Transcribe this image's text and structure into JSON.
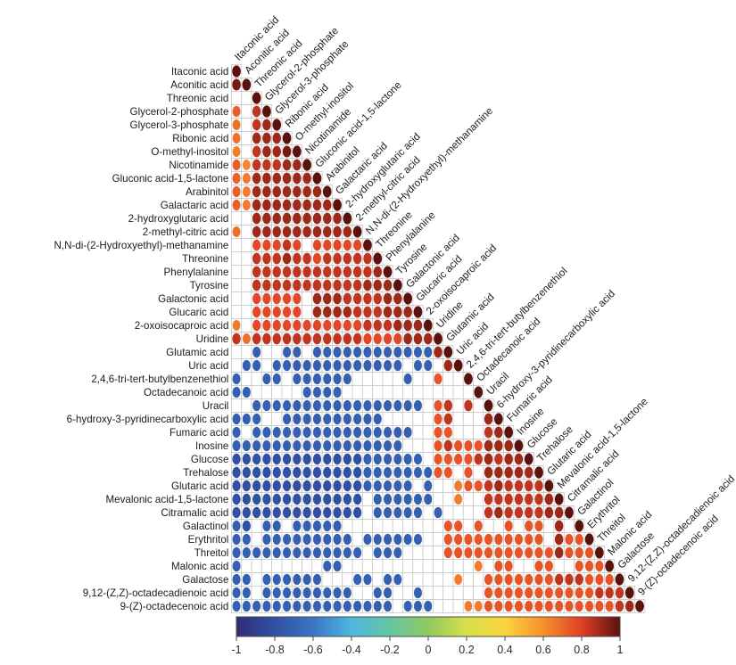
{
  "chart_data": {
    "type": "heatmap",
    "subtype": "correlation-ellipse-matrix",
    "title": "",
    "legend_position": "bottom",
    "grid": true,
    "variables": [
      "Itaconic acid",
      "Aconitic acid",
      "Threonic acid",
      "Glycerol-2-phosphate",
      "Glycerol-3-phosphate",
      "Ribonic acid",
      "O-methyl-inositol",
      "Nicotinamide",
      "Gluconic acid-1,5-lactone",
      "Arabinitol",
      "Galactaric acid",
      "2-hydroxyglutaric acid",
      "2-methyl-citric acid",
      "N,N-di-(2-Hydroxyethyl)-methanamine",
      "Threonine",
      "Phenylalanine",
      "Tyrosine",
      "Galactonic acid",
      "Glucaric acid",
      "2-oxoisocaproic acid",
      "Uridine",
      "Glutamic acid",
      "Uric acid",
      "2,4,6-tri-tert-butylbenzenethiol",
      "Octadecanoic acid",
      "Uracil",
      "6-hydroxy-3-pyridinecarboxylic acid",
      "Fumaric acid",
      "Inosine",
      "Glucose",
      "Trehalose",
      "Glutaric acid",
      "Mevalonic acid-1,5-lactone",
      "Citramalic acid",
      "Galactinol",
      "Erythritol",
      "Threitol",
      "Malonic acid",
      "Galactose",
      "9,12-(Z,Z)-octadecadienoic acid",
      "9-(Z)-octadecenoic acid"
    ],
    "value_key": {
      ".": null,
      "1": 0.62,
      "2": 0.65,
      "3": 0.68,
      "4": 0.72,
      "5": 0.75,
      "6": 0.78,
      "7": 0.85,
      "8": 0.9,
      "9": 0.96,
      "X": 1.0,
      "a": -0.55,
      "b": -0.72,
      "c": -0.8,
      "e": -0.85,
      "g": -0.95
    },
    "matrix_rows": [
      "X",
      "9X",
      "..X",
      "4.7X",
      "3.78X",
      "3.888X",
      "2.7889X",
      "4177788X",
      "42888888X",
      "428888888X",
      "4288888888X",
      "..888888888X",
      "3.8888888888X",
      "..66676.66666X",
      "..777877677777X",
      "..7777777777778X",
      "..77777777777888X",
      "..66666.888777788X",
      "..66666.8888777888X",
      "2.66666666666777888X",
      "73777777777776666888X",
      "..b..bb.bbbbbbbbbbbb8X",
      ".bb.bbbbbbbbbbbbb.bb.8X",
      "b..bb.bbbbbb.....b..5..X",
      "bb.....bbbb.............X",
      "..bbbbbbbbbbbbbbbbb.57.7.X",
      "bbb..bbbbbbbbbb.....57...8X",
      "b.bbbbbbbbbbbbbbbb..55...78X",
      "bbbbbbbbbbbbbbbbb...57555888X",
      "cccccccccccccbbbbbb.555578788X",
      "cccccccccccccbbbbbbb55.5.88888X",
      "cccccccccccccbbbbb.b..255787777X",
      "ccccccccccccc.bbbbbb..2..7777778X",
      "ccccccccccccc.bbbbb.b....78777788X",
      "bc.bb.bbbbb..........55.5..5.55.8.X",
      "bb.bbbbbbbbb.bbbbbb..5555555555.855X",
      "bbbbbbbbbbbbb.bbb....555555555558555X",
      "b........bb.............2.55..55..555X",
      "bb.bbbbbb...bb.bb.....2..5555555777555X",
      "bb.bbbbbbbbb..bb..b......55555555555777X",
      "bbbbbbbbbbbbbbbb.bbb...22555555555555578X"
    ],
    "colorbar": {
      "min": -1,
      "max": 1,
      "tick_labels": [
        "-1",
        "-0.8",
        "-0.6",
        "-0.4",
        "-0.2",
        "0",
        "0.2",
        "0.4",
        "0.6",
        "0.8",
        "1"
      ],
      "colormap_stops": [
        [
          -1.0,
          "#312b77"
        ],
        [
          -0.8,
          "#3150a2"
        ],
        [
          -0.6,
          "#3a75c4"
        ],
        [
          -0.4,
          "#4db8dd"
        ],
        [
          -0.2,
          "#67c5a3"
        ],
        [
          0.0,
          "#90c95f"
        ],
        [
          0.2,
          "#d7e04b"
        ],
        [
          0.4,
          "#fbd43c"
        ],
        [
          0.6,
          "#f6902f"
        ],
        [
          0.8,
          "#e04026"
        ],
        [
          1.0,
          "#5a120e"
        ]
      ]
    },
    "layout": {
      "matrix_left": 259.4,
      "matrix_top": 72.5,
      "cell_w": 11.3,
      "cell_h": 15.0,
      "n": 41,
      "grid_color": "#c9c9c9",
      "cell_fill": "#ffffff",
      "colorbar_x": 265,
      "colorbar_y": 692,
      "colorbar_w": 430,
      "colorbar_h": 22
    }
  }
}
